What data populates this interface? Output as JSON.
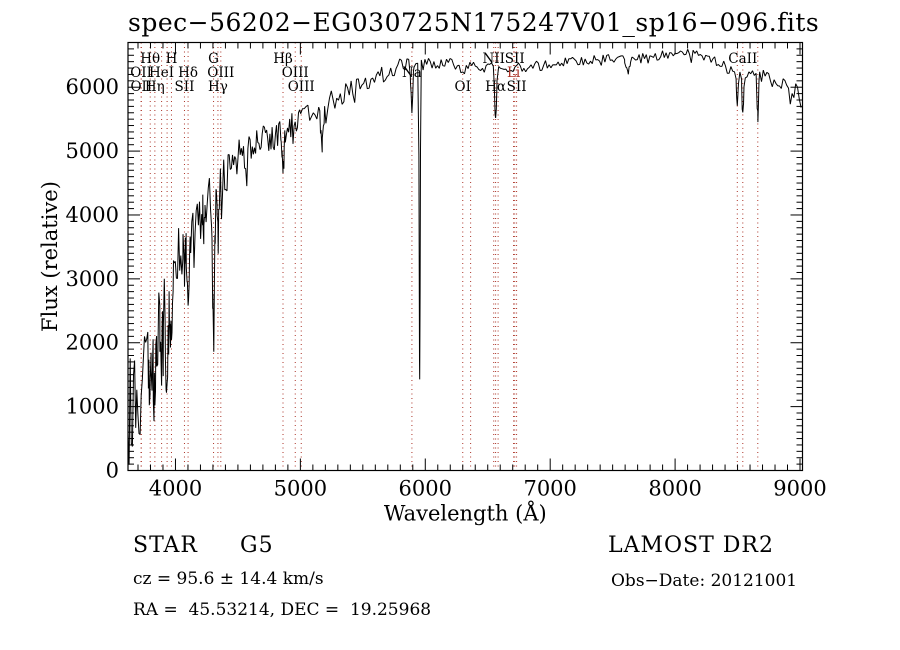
{
  "title": "spec−56202−EG030725N175247V01_sp16−096.fits",
  "footer": {
    "object_type": "STAR",
    "subclass": "G5",
    "survey": "LAMOST DR2",
    "cz_line": "cz = 95.6 ± 14.4 km/s",
    "obs_date_line": "Obs−Date: 20121001",
    "coords_line": "RA =  45.53214, DEC =  19.25968"
  },
  "chart_data": {
    "type": "line",
    "title": "spec−56202−EG030725N175247V01_sp16−096.fits",
    "xlabel": "Wavelength (Å)",
    "ylabel": "Flux (relative)",
    "xlim": [
      3620,
      9020
    ],
    "ylim": [
      0,
      6700
    ],
    "x_major_ticks": [
      4000,
      5000,
      6000,
      7000,
      8000,
      9000
    ],
    "y_major_ticks": [
      0,
      1000,
      2000,
      3000,
      4000,
      5000,
      6000
    ],
    "x_minor_step": 100,
    "y_minor_step": 100,
    "grid": false,
    "frame": true,
    "line_color": "#000000",
    "marker_line_color": "#ab3226",
    "spectral_lines": [
      {
        "wavelength": 3725,
        "label": "OII",
        "row": 2
      },
      {
        "wavelength": 3727,
        "label": "OII",
        "row": 3
      },
      {
        "wavelength": 3798,
        "label": "Hθ",
        "row": 1
      },
      {
        "wavelength": 3835,
        "label": "Hη",
        "row": 3
      },
      {
        "wavelength": 3889,
        "label": "HeI",
        "row": 2
      },
      {
        "wavelength": 3933,
        "label": "",
        "row": 0
      },
      {
        "wavelength": 3968,
        "label": "H",
        "row": 1
      },
      {
        "wavelength": 4072,
        "label": "SII",
        "row": 3
      },
      {
        "wavelength": 4101,
        "label": "Hδ",
        "row": 2
      },
      {
        "wavelength": 4305,
        "label": "G",
        "row": 1
      },
      {
        "wavelength": 4340,
        "label": "Hγ",
        "row": 3
      },
      {
        "wavelength": 4363,
        "label": "OIII",
        "row": 2
      },
      {
        "wavelength": 4861,
        "label": "Hβ",
        "row": 1
      },
      {
        "wavelength": 4959,
        "label": "OIII",
        "row": 2
      },
      {
        "wavelength": 5007,
        "label": "OIII",
        "row": 3
      },
      {
        "wavelength": 5893,
        "label": "Na",
        "row": 2
      },
      {
        "wavelength": 6300,
        "label": "OI",
        "row": 3
      },
      {
        "wavelength": 6363,
        "label": "",
        "row": 0
      },
      {
        "wavelength": 6548,
        "label": "NII",
        "row": 1
      },
      {
        "wavelength": 6563,
        "label": "Hα",
        "row": 3
      },
      {
        "wavelength": 6583,
        "label": "",
        "row": 0
      },
      {
        "wavelength": 6707,
        "label": "Li",
        "row": 2,
        "color": "#ab3226"
      },
      {
        "wavelength": 6716,
        "label": "SII",
        "row": 1
      },
      {
        "wavelength": 6731,
        "label": "SII",
        "row": 3
      },
      {
        "wavelength": 8498,
        "label": "",
        "row": 0
      },
      {
        "wavelength": 8542,
        "label": "CaII",
        "row": 1
      },
      {
        "wavelength": 8662,
        "label": "",
        "row": 0
      }
    ],
    "continuum": [
      [
        3620,
        900
      ],
      [
        3680,
        1050
      ],
      [
        3730,
        1350
      ],
      [
        3780,
        1750
      ],
      [
        3830,
        1950
      ],
      [
        3880,
        2400
      ],
      [
        3930,
        2900
      ],
      [
        3980,
        3300
      ],
      [
        4040,
        3550
      ],
      [
        4100,
        3750
      ],
      [
        4160,
        3950
      ],
      [
        4240,
        4150
      ],
      [
        4320,
        4350
      ],
      [
        4400,
        4600
      ],
      [
        4500,
        4900
      ],
      [
        4620,
        5080
      ],
      [
        4750,
        5200
      ],
      [
        4870,
        5350
      ],
      [
        5000,
        5550
      ],
      [
        5150,
        5700
      ],
      [
        5300,
        5850
      ],
      [
        5450,
        6000
      ],
      [
        5600,
        6150
      ],
      [
        5750,
        6280
      ],
      [
        5900,
        6420
      ],
      [
        6000,
        6340
      ],
      [
        6150,
        6380
      ],
      [
        6300,
        6300
      ],
      [
        6450,
        6330
      ],
      [
        6600,
        6290
      ],
      [
        6750,
        6300
      ],
      [
        6900,
        6330
      ],
      [
        7050,
        6370
      ],
      [
        7200,
        6400
      ],
      [
        7350,
        6430
      ],
      [
        7500,
        6450
      ],
      [
        7650,
        6470
      ],
      [
        7800,
        6490
      ],
      [
        7950,
        6510
      ],
      [
        8100,
        6520
      ],
      [
        8250,
        6460
      ],
      [
        8400,
        6320
      ],
      [
        8550,
        6260
      ],
      [
        8700,
        6160
      ],
      [
        8800,
        6080
      ],
      [
        8900,
        5990
      ],
      [
        8970,
        5890
      ],
      [
        9020,
        5650
      ]
    ],
    "absorption_features": [
      [
        3798,
        500,
        9
      ],
      [
        3835,
        600,
        9
      ],
      [
        3889,
        700,
        9
      ],
      [
        3933,
        1500,
        10
      ],
      [
        3968,
        1300,
        10
      ],
      [
        4072,
        400,
        8
      ],
      [
        4101,
        1000,
        10
      ],
      [
        4227,
        500,
        6
      ],
      [
        4305,
        2200,
        8
      ],
      [
        4340,
        800,
        8
      ],
      [
        4861,
        600,
        9
      ],
      [
        5175,
        700,
        12
      ],
      [
        5893,
        800,
        8
      ],
      [
        5955,
        4900,
        4
      ],
      [
        6563,
        850,
        7
      ],
      [
        7620,
        250,
        15
      ],
      [
        8498,
        550,
        6
      ],
      [
        8542,
        700,
        6
      ],
      [
        8662,
        650,
        6
      ]
    ],
    "noise_profile": [
      [
        3620,
        850
      ],
      [
        3700,
        750
      ],
      [
        3800,
        620
      ],
      [
        3900,
        520
      ],
      [
        4000,
        430
      ],
      [
        4200,
        370
      ],
      [
        4400,
        320
      ],
      [
        4700,
        250
      ],
      [
        5000,
        200
      ],
      [
        5400,
        160
      ],
      [
        5800,
        130
      ],
      [
        6100,
        100
      ],
      [
        6500,
        90
      ],
      [
        7000,
        80
      ],
      [
        7600,
        65
      ],
      [
        8100,
        75
      ],
      [
        8500,
        100
      ],
      [
        8800,
        130
      ],
      [
        9020,
        170
      ]
    ],
    "noise_seed": 20121001
  }
}
